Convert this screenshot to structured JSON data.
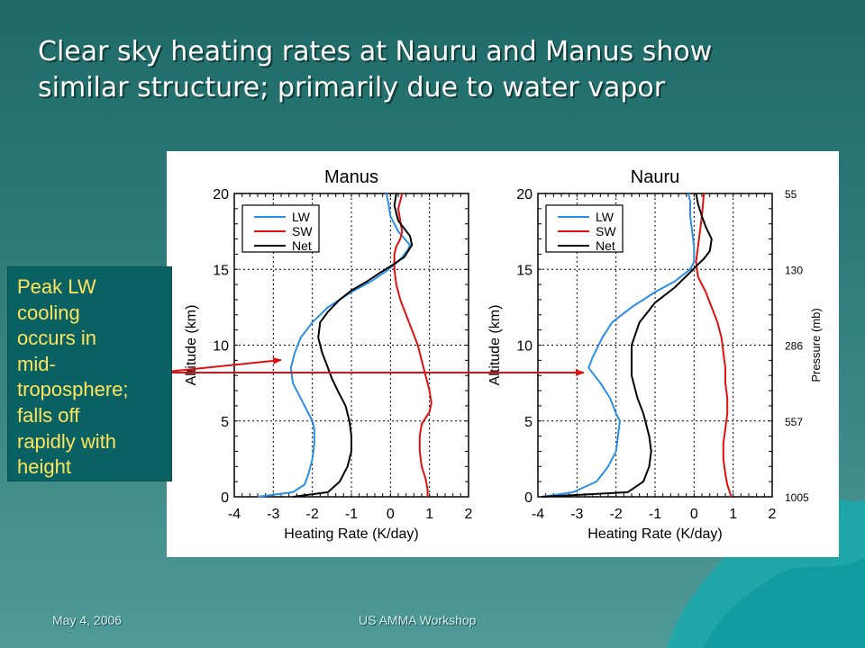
{
  "slide": {
    "title_lines": [
      "Clear sky heating rates at Nauru and Manus show",
      "similar structure; primarily due to water vapor"
    ],
    "callout_lines": [
      "Peak LW",
      "cooling",
      "occurs in",
      "mid-",
      "troposphere;",
      "falls off",
      "rapidly with",
      "height"
    ],
    "footer_date": "May 4, 2006",
    "footer_event": "US AMMA Workshop",
    "colors": {
      "callout_bg": "#0a6163",
      "callout_text": "#ffe55c",
      "arrow": "#e01010"
    }
  },
  "chart_data": [
    {
      "type": "line",
      "title": "Manus",
      "xlabel": "Heating Rate (K/day)",
      "ylabel": "Altitude (km)",
      "xlim": [
        -4,
        2
      ],
      "ylim": [
        0,
        20
      ],
      "xticks": [
        "-4",
        "-3",
        "-2",
        "-1",
        "0",
        "1",
        "2"
      ],
      "yticks": [
        "0",
        "5",
        "10",
        "15",
        "20"
      ],
      "grid": true,
      "legend": "top-left",
      "series": [
        {
          "name": "LW",
          "color": "#2a8fe8",
          "x": [
            -3.4,
            -2.5,
            -2.2,
            -2.1,
            -2.0,
            -1.95,
            -1.95,
            -2.0,
            -2.1,
            -2.3,
            -2.5,
            -2.55,
            -2.45,
            -2.3,
            -2.0,
            -1.6,
            -1.0,
            -0.5,
            -0.15,
            0.1,
            0.3,
            0.45,
            0.5,
            0.2,
            0.0,
            -0.05,
            -0.1
          ],
          "y": [
            0,
            0.3,
            0.8,
            1.5,
            2.5,
            3.5,
            4.5,
            5.0,
            5.5,
            6.5,
            7.5,
            8.5,
            9.5,
            10.5,
            11.5,
            12.5,
            13.5,
            14.2,
            14.8,
            15.3,
            15.8,
            16.3,
            16.6,
            17.5,
            18.5,
            19.3,
            20
          ]
        },
        {
          "name": "SW",
          "color": "#e01010",
          "x": [
            0.95,
            0.95,
            0.9,
            0.8,
            0.75,
            0.75,
            0.8,
            0.9,
            1.0,
            1.05,
            1.0,
            0.9,
            0.8,
            0.7,
            0.55,
            0.4,
            0.25,
            0.15,
            0.1,
            0.1,
            0.15,
            0.25,
            0.3,
            0.25,
            0.2,
            0.25,
            0.3
          ],
          "y": [
            0,
            0.5,
            1.2,
            2,
            3,
            4,
            4.8,
            5.2,
            5.6,
            6.2,
            7,
            8,
            9,
            10,
            11,
            12,
            13,
            14,
            15,
            16,
            16.5,
            17,
            17.5,
            18.2,
            19,
            19.5,
            20
          ]
        },
        {
          "name": "Net",
          "color": "#000000",
          "x": [
            -2.5,
            -1.6,
            -1.3,
            -1.1,
            -1.0,
            -1.0,
            -1.05,
            -1.15,
            -1.35,
            -1.5,
            -1.6,
            -1.75,
            -1.85,
            -1.8,
            -1.6,
            -1.3,
            -1.0,
            -0.6,
            -0.25,
            0.0,
            0.35,
            0.55,
            0.5,
            0.2,
            0.1,
            0.15
          ],
          "y": [
            0,
            0.3,
            1,
            2,
            3,
            4,
            5,
            6,
            7,
            7.8,
            8.5,
            9.5,
            10.5,
            11.5,
            12.2,
            13,
            13.6,
            14.2,
            14.8,
            15.2,
            15.8,
            16.6,
            17.2,
            18.2,
            19.2,
            20
          ]
        }
      ]
    },
    {
      "type": "line",
      "title": "Nauru",
      "xlabel": "Heating Rate (K/day)",
      "ylabel": "Altitude (km)",
      "y2label": "Pressure (mb)",
      "y2ticks": [
        {
          "altitude": 0,
          "label": "1005"
        },
        {
          "altitude": 5,
          "label": "557"
        },
        {
          "altitude": 10,
          "label": "286"
        },
        {
          "altitude": 15,
          "label": "130"
        },
        {
          "altitude": 20,
          "label": "55"
        }
      ],
      "xlim": [
        -4,
        2
      ],
      "ylim": [
        0,
        20
      ],
      "xticks": [
        "-4",
        "-3",
        "-2",
        "-1",
        "0",
        "1",
        "2"
      ],
      "yticks": [
        "0",
        "5",
        "10",
        "15",
        "20"
      ],
      "grid": true,
      "legend": "top-left",
      "series": [
        {
          "name": "LW",
          "color": "#2a8fe8",
          "x": [
            -3.9,
            -3.1,
            -2.5,
            -2.2,
            -2.0,
            -1.95,
            -1.9,
            -2.0,
            -2.15,
            -2.4,
            -2.55,
            -2.7,
            -2.6,
            -2.35,
            -2.1,
            -1.6,
            -1.0,
            -0.5,
            -0.1,
            0.0,
            0.0,
            -0.05,
            -0.1,
            -0.1,
            -0.15
          ],
          "y": [
            0,
            0.3,
            1.0,
            2.0,
            3.0,
            4.0,
            5.0,
            5.5,
            6.5,
            7.5,
            8.0,
            8.5,
            9.2,
            10.5,
            11.5,
            12.5,
            13.5,
            14.2,
            15.0,
            15.5,
            16.5,
            17.5,
            18.5,
            19.5,
            20
          ]
        },
        {
          "name": "SW",
          "color": "#e01010",
          "x": [
            0.95,
            0.85,
            0.8,
            0.75,
            0.75,
            0.8,
            0.85,
            0.85,
            0.8,
            0.8,
            0.75,
            0.7,
            0.6,
            0.45,
            0.3,
            0.1,
            0.05,
            0.1,
            0.15,
            0.2,
            0.25
          ],
          "y": [
            0,
            0.8,
            1.5,
            2.5,
            3.5,
            4.5,
            5.5,
            6.5,
            7.5,
            8.5,
            9.5,
            10.5,
            11.5,
            12.5,
            13.5,
            14.5,
            15.5,
            16.5,
            17.5,
            18.5,
            20
          ]
        },
        {
          "name": "Net",
          "color": "#000000",
          "x": [
            -3.9,
            -1.7,
            -1.3,
            -1.15,
            -1.1,
            -1.15,
            -1.3,
            -1.45,
            -1.6,
            -1.6,
            -1.4,
            -1.0,
            -0.5,
            -0.1,
            0.05,
            0.25,
            0.4,
            0.45,
            0.3,
            0.2,
            0.1,
            0.05
          ],
          "y": [
            0,
            0.3,
            1,
            2,
            3,
            4,
            5.5,
            6.5,
            8,
            10,
            11.5,
            12.8,
            13.8,
            14.8,
            15.2,
            15.7,
            16.2,
            17,
            17.8,
            18.5,
            19.3,
            20
          ]
        }
      ]
    }
  ]
}
